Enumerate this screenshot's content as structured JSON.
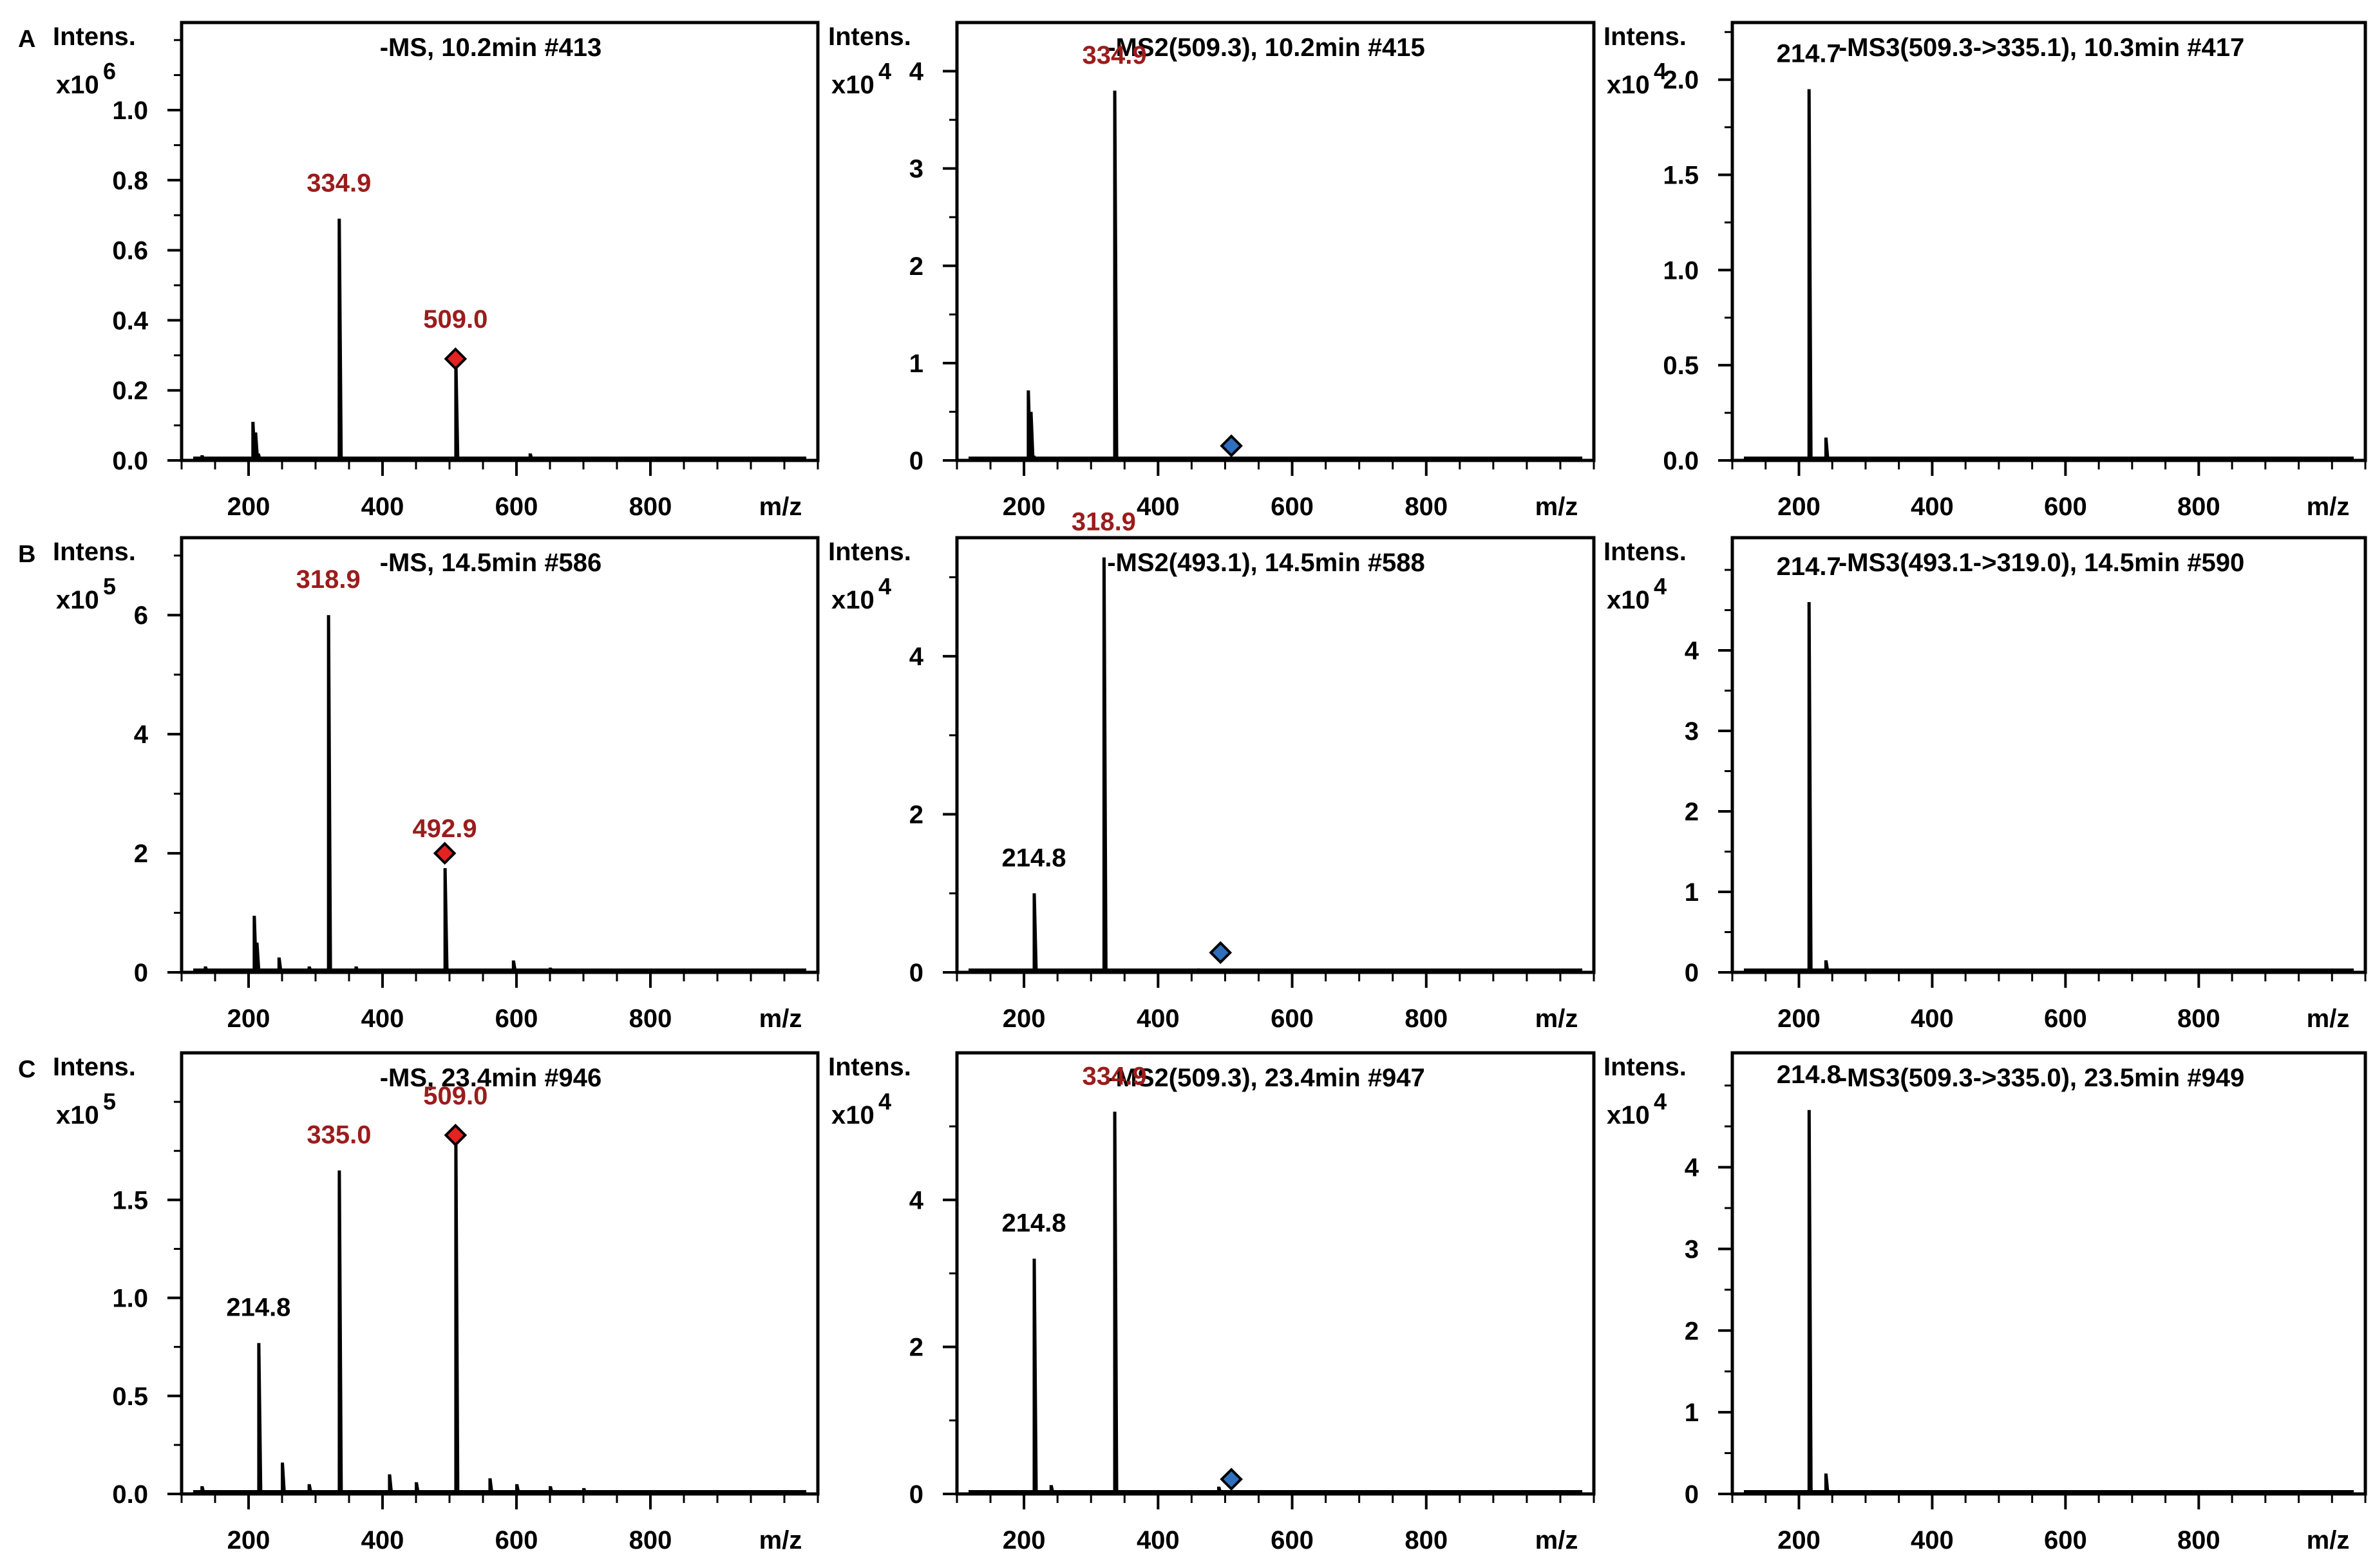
{
  "colors": {
    "axis": "#000000",
    "trace": "#000000",
    "precursor_label": "#9b1c1c",
    "fragment_label": "#000000",
    "marker_ms1": "#e32322",
    "marker_msn": "#2f6fbe"
  },
  "chart_data": [
    {
      "type": "line",
      "row": 0,
      "col": 0,
      "row_label": "A",
      "title": "-MS, 10.2min #413",
      "ylabel": "Intens.",
      "y_multiplier": {
        "base": "x10",
        "exponent": "6"
      },
      "xlabel": "m/z",
      "xlim": [
        100,
        1050
      ],
      "xticks": [
        200,
        400,
        600,
        800
      ],
      "ylim": [
        0,
        1.25
      ],
      "yticks": [
        0.0,
        0.2,
        0.4,
        0.6,
        0.8,
        1.0
      ],
      "ytick_labels": [
        "0.0",
        "0.2",
        "0.4",
        "0.6",
        "0.8",
        "1.0"
      ],
      "yminor": 0.1,
      "series": [
        {
          "name": "spectrum",
          "x": [
            130,
            206,
            210,
            214,
            250,
            290,
            334.9,
            509.0,
            545,
            620,
            700,
            840,
            900
          ],
          "values": [
            0.015,
            0.11,
            0.08,
            0.02,
            0.01,
            0.01,
            0.69,
            0.29,
            0.01,
            0.02,
            0.01,
            0.01,
            0.01
          ]
        }
      ],
      "annotations": [
        {
          "text": "334.9",
          "x": 334.9,
          "y": 0.69,
          "style": "precursor"
        },
        {
          "text": "509.0",
          "x": 509.0,
          "y": 0.29,
          "style": "precursor"
        }
      ],
      "marker": {
        "x": 509.0,
        "y": 0.29,
        "color": "marker_ms1"
      }
    },
    {
      "type": "line",
      "row": 0,
      "col": 1,
      "row_label": "",
      "title": "-MS2(509.3), 10.2min #415",
      "ylabel": "Intens.",
      "y_multiplier": {
        "base": "x10",
        "exponent": "4"
      },
      "xlabel": "m/z",
      "xlim": [
        100,
        1050
      ],
      "xticks": [
        200,
        400,
        600,
        800
      ],
      "ylim": [
        0,
        4.5
      ],
      "yticks": [
        0,
        1,
        2,
        3,
        4
      ],
      "ytick_labels": [
        "0",
        "1",
        "2",
        "3",
        "4"
      ],
      "yminor": 0.5,
      "series": [
        {
          "name": "spectrum",
          "x": [
            206,
            210,
            214,
            334.9,
            520
          ],
          "values": [
            0.72,
            0.5,
            0.05,
            3.8,
            0.02
          ]
        }
      ],
      "annotations": [
        {
          "text": "334.9",
          "x": 334.9,
          "y": 3.8,
          "style": "precursor"
        }
      ],
      "marker": {
        "x": 509.3,
        "y": 0.15,
        "color": "marker_msn"
      }
    },
    {
      "type": "line",
      "row": 0,
      "col": 2,
      "row_label": "",
      "title": "-MS3(509.3->335.1), 10.3min #417",
      "ylabel": "Intens.",
      "y_multiplier": {
        "base": "x10",
        "exponent": "4"
      },
      "xlabel": "m/z",
      "xlim": [
        100,
        1050
      ],
      "xticks": [
        200,
        400,
        600,
        800
      ],
      "ylim": [
        0,
        2.3
      ],
      "yticks": [
        0.0,
        0.5,
        1.0,
        1.5,
        2.0
      ],
      "ytick_labels": [
        "0.0",
        "0.5",
        "1.0",
        "1.5",
        "2.0"
      ],
      "yminor": 0.25,
      "series": [
        {
          "name": "spectrum",
          "x": [
            130,
            214.7,
            240,
            310
          ],
          "values": [
            0.01,
            1.95,
            0.12,
            0.02
          ]
        }
      ],
      "annotations": [
        {
          "text": "214.7",
          "x": 214.7,
          "y": 1.95,
          "style": "fragment"
        }
      ],
      "marker": null
    },
    {
      "type": "line",
      "row": 1,
      "col": 0,
      "row_label": "B",
      "title": "-MS, 14.5min #586",
      "ylabel": "Intens.",
      "y_multiplier": {
        "base": "x10",
        "exponent": "5"
      },
      "xlabel": "m/z",
      "xlim": [
        100,
        1050
      ],
      "xticks": [
        200,
        400,
        600,
        800
      ],
      "ylim": [
        0,
        7.3
      ],
      "yticks": [
        0,
        2,
        4,
        6
      ],
      "ytick_labels": [
        "0",
        "2",
        "4",
        "6"
      ],
      "yminor": 1,
      "series": [
        {
          "name": "spectrum",
          "x": [
            135,
            208,
            212,
            245,
            290,
            318.9,
            360,
            440,
            492.9,
            595,
            650,
            700,
            780
          ],
          "values": [
            0.1,
            0.95,
            0.5,
            0.25,
            0.1,
            6.0,
            0.1,
            0.05,
            1.75,
            0.2,
            0.08,
            0.05,
            0.03
          ]
        }
      ],
      "annotations": [
        {
          "text": "318.9",
          "x": 318.9,
          "y": 6.0,
          "style": "precursor"
        },
        {
          "text": "492.9",
          "x": 492.9,
          "y": 1.75,
          "style": "precursor"
        }
      ],
      "marker": {
        "x": 492.9,
        "y": 2.0,
        "color": "marker_ms1"
      }
    },
    {
      "type": "line",
      "row": 1,
      "col": 1,
      "row_label": "",
      "title": "-MS2(493.1), 14.5min #588",
      "ylabel": "Intens.",
      "y_multiplier": {
        "base": "x10",
        "exponent": "4"
      },
      "xlabel": "m/z",
      "xlim": [
        100,
        1050
      ],
      "xticks": [
        200,
        400,
        600,
        800
      ],
      "ylim": [
        0,
        5.5
      ],
      "yticks": [
        0,
        2,
        4
      ],
      "ytick_labels": [
        "0",
        "2",
        "4"
      ],
      "yminor": 1,
      "series": [
        {
          "name": "spectrum",
          "x": [
            214.8,
            318.9,
            460
          ],
          "values": [
            1.0,
            5.25,
            0.05
          ]
        }
      ],
      "annotations": [
        {
          "text": "318.9",
          "x": 318.9,
          "y": 5.25,
          "style": "precursor"
        },
        {
          "text": "214.8",
          "x": 214.8,
          "y": 1.0,
          "style": "fragment"
        }
      ],
      "marker": {
        "x": 493.1,
        "y": 0.25,
        "color": "marker_msn"
      }
    },
    {
      "type": "line",
      "row": 1,
      "col": 2,
      "row_label": "",
      "title": "-MS3(493.1->319.0), 14.5min #590",
      "ylabel": "Intens.",
      "y_multiplier": {
        "base": "x10",
        "exponent": "4"
      },
      "xlabel": "m/z",
      "xlim": [
        100,
        1050
      ],
      "xticks": [
        200,
        400,
        600,
        800
      ],
      "ylim": [
        0,
        5.4
      ],
      "yticks": [
        0,
        1,
        2,
        3,
        4
      ],
      "ytick_labels": [
        "0",
        "1",
        "2",
        "3",
        "4"
      ],
      "yminor": 0.5,
      "series": [
        {
          "name": "spectrum",
          "x": [
            214.7,
            240,
            280
          ],
          "values": [
            4.6,
            0.15,
            0.03
          ]
        }
      ],
      "annotations": [
        {
          "text": "214.7",
          "x": 214.7,
          "y": 4.6,
          "style": "fragment"
        }
      ],
      "marker": null
    },
    {
      "type": "line",
      "row": 2,
      "col": 0,
      "row_label": "C",
      "title": "-MS, 23.4min #946",
      "ylabel": "Intens.",
      "y_multiplier": {
        "base": "x10",
        "exponent": "5"
      },
      "xlabel": "m/z",
      "xlim": [
        100,
        1050
      ],
      "xticks": [
        200,
        400,
        600,
        800
      ],
      "ylim": [
        0,
        2.25
      ],
      "yticks": [
        0.0,
        0.5,
        1.0,
        1.5
      ],
      "ytick_labels": [
        "0.0",
        "0.5",
        "1.0",
        "1.5"
      ],
      "yminor": 0.25,
      "series": [
        {
          "name": "spectrum",
          "x": [
            130,
            214.8,
            250,
            290,
            335.0,
            410,
            450,
            509.0,
            560,
            600,
            650,
            700
          ],
          "values": [
            0.04,
            0.77,
            0.16,
            0.05,
            1.65,
            0.1,
            0.06,
            1.83,
            0.08,
            0.05,
            0.04,
            0.03
          ]
        }
      ],
      "annotations": [
        {
          "text": "335.0",
          "x": 335.0,
          "y": 1.65,
          "style": "precursor"
        },
        {
          "text": "509.0",
          "x": 509.0,
          "y": 1.83,
          "style": "precursor"
        },
        {
          "text": "214.8",
          "x": 214.8,
          "y": 0.77,
          "style": "fragment"
        }
      ],
      "marker": {
        "x": 509.0,
        "y": 1.83,
        "color": "marker_ms1"
      }
    },
    {
      "type": "line",
      "row": 2,
      "col": 1,
      "row_label": "",
      "title": "-MS2(509.3), 23.4min #947",
      "ylabel": "Intens.",
      "y_multiplier": {
        "base": "x10",
        "exponent": "4"
      },
      "xlabel": "m/z",
      "xlim": [
        100,
        1050
      ],
      "xticks": [
        200,
        400,
        600,
        800
      ],
      "ylim": [
        0,
        6.0
      ],
      "yticks": [
        0,
        2,
        4
      ],
      "ytick_labels": [
        "0",
        "2",
        "4"
      ],
      "yminor": 1,
      "series": [
        {
          "name": "spectrum",
          "x": [
            214.8,
            240,
            334.9,
            490
          ],
          "values": [
            3.2,
            0.12,
            5.2,
            0.1
          ]
        }
      ],
      "annotations": [
        {
          "text": "334.9",
          "x": 334.9,
          "y": 5.2,
          "style": "precursor"
        },
        {
          "text": "214.8",
          "x": 214.8,
          "y": 3.2,
          "style": "fragment"
        }
      ],
      "marker": {
        "x": 509.3,
        "y": 0.2,
        "color": "marker_msn"
      }
    },
    {
      "type": "line",
      "row": 2,
      "col": 2,
      "row_label": "",
      "title": "-MS3(509.3->335.0), 23.5min #949",
      "ylabel": "Intens.",
      "y_multiplier": {
        "base": "x10",
        "exponent": "4"
      },
      "xlabel": "m/z",
      "xlim": [
        100,
        1050
      ],
      "xticks": [
        200,
        400,
        600,
        800
      ],
      "ylim": [
        0,
        5.4
      ],
      "yticks": [
        0,
        1,
        2,
        3,
        4
      ],
      "ytick_labels": [
        "0",
        "1",
        "2",
        "3",
        "4"
      ],
      "yminor": 0.5,
      "series": [
        {
          "name": "spectrum",
          "x": [
            214.8,
            240,
            310
          ],
          "values": [
            4.7,
            0.25,
            0.03
          ]
        }
      ],
      "annotations": [
        {
          "text": "214.8",
          "x": 214.8,
          "y": 4.7,
          "style": "fragment"
        }
      ],
      "marker": null
    }
  ]
}
